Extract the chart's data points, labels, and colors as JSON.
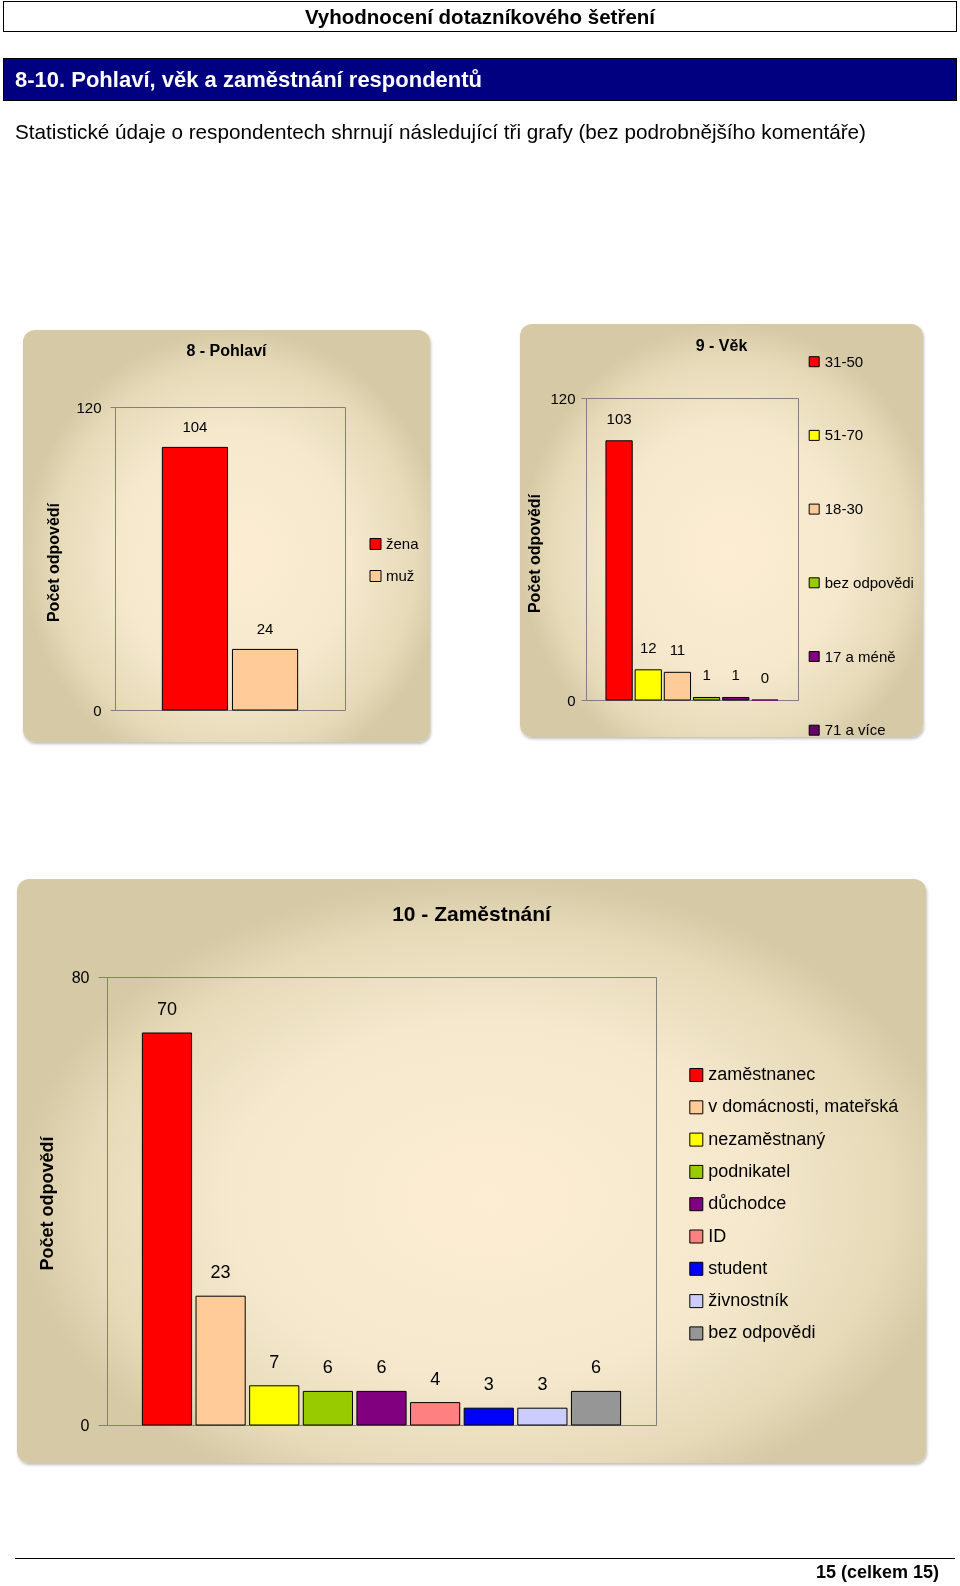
{
  "chart_data": [
    {
      "type": "other",
      "title": "8-10. Pohlaví, věk a zaměstnání respondentů",
      "subtitle": "Statistické údaje o respondentech shrnují následující tři grafy (bez podrobnějšího komentáře)",
      "annotations": [
        "Vyhodnocení dotazníkového šetření"
      ]
    },
    {
      "type": "bar",
      "title": "8 - Pohlaví",
      "ylabel": "Počet odpovědí",
      "categories": [
        null
      ],
      "series": [
        {
          "name": "žena",
          "color": "#ff0000",
          "values": [
            104
          ]
        },
        {
          "name": "muž",
          "color": "#ffcc99",
          "values": [
            24
          ]
        }
      ],
      "ylim": [
        0,
        120
      ],
      "yticks": [
        0,
        120
      ],
      "data_labels": true,
      "legend": "right",
      "tick_labels": "y"
    },
    {
      "type": "bar",
      "title": "9 - Věk",
      "ylabel": "Počet odpovědí",
      "categories": [
        null
      ],
      "series": [
        {
          "name": "31-50",
          "color": "#ff0000",
          "values": [
            103
          ]
        },
        {
          "name": "51-70",
          "color": "#ffff00",
          "values": [
            12
          ]
        },
        {
          "name": "18-30",
          "color": "#ffcc99",
          "values": [
            11
          ]
        },
        {
          "name": "bez odpovědi",
          "color": "#99cc00",
          "values": [
            1
          ]
        },
        {
          "name": "17 a méně",
          "color": "#800080",
          "values": [
            1
          ]
        },
        {
          "name": "71 a více",
          "color": "#660066",
          "values": [
            0
          ]
        }
      ],
      "ylim": [
        0,
        120
      ],
      "yticks": [
        0,
        120
      ],
      "data_labels": true,
      "legend": "right",
      "tick_labels": "y"
    },
    {
      "type": "bar",
      "title": "10 - Zaměstnání",
      "ylabel": "Počet odpovědí",
      "categories": [
        null
      ],
      "series": [
        {
          "name": "zaměstnanec",
          "color": "#ff0000",
          "values": [
            70
          ]
        },
        {
          "name": "v domácnosti, mateřská",
          "color": "#ffcc99",
          "values": [
            23
          ]
        },
        {
          "name": "nezaměstnaný",
          "color": "#ffff00",
          "values": [
            7
          ]
        },
        {
          "name": "podnikatel",
          "color": "#99cc00",
          "values": [
            6
          ]
        },
        {
          "name": "důchodce",
          "color": "#800080",
          "values": [
            6
          ]
        },
        {
          "name": "ID",
          "color": "#ff8080",
          "values": [
            4
          ]
        },
        {
          "name": "student",
          "color": "#0000ff",
          "values": [
            3
          ]
        },
        {
          "name": "živnostník",
          "color": "#ccccff",
          "values": [
            3
          ]
        },
        {
          "name": "bez odpovědi",
          "color": "#969696",
          "values": [
            6
          ]
        }
      ],
      "ylim": [
        0,
        80
      ],
      "yticks": [
        0,
        80
      ],
      "data_labels": true,
      "legend": "right",
      "tick_labels": "y"
    },
    {
      "type": "other",
      "annotations": [
        "15 (celkem 15)"
      ]
    }
  ]
}
